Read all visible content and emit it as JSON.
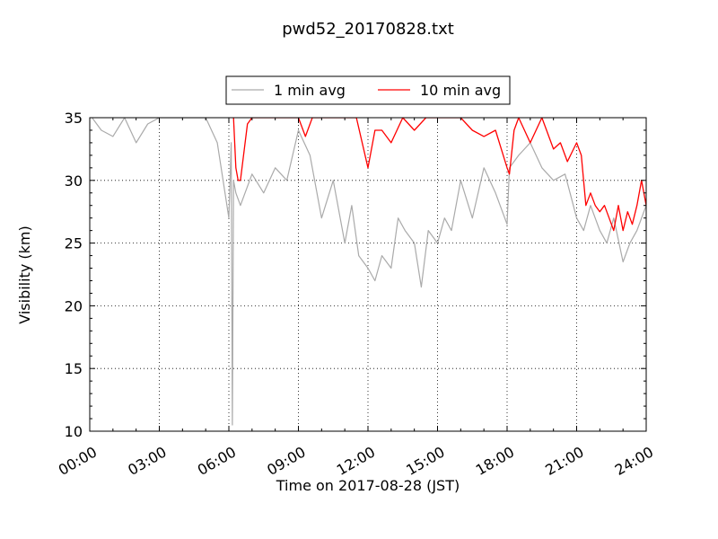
{
  "chart_data": {
    "type": "line",
    "title": "pwd52_20170828.txt",
    "xlabel": "Time on 2017-08-28 (JST)",
    "ylabel": "Visibility (km)",
    "xlim_hours": [
      0,
      24
    ],
    "ylim": [
      10,
      35
    ],
    "xticks": [
      "00:00",
      "03:00",
      "06:00",
      "09:00",
      "12:00",
      "15:00",
      "18:00",
      "21:00",
      "24:00"
    ],
    "yticks": [
      10,
      15,
      20,
      25,
      30,
      35
    ],
    "grid": true,
    "legend": {
      "placement": "top-center-outside"
    },
    "series": [
      {
        "name": "1 min avg",
        "color": "#aaaaaa",
        "x_hours": [
          0.1,
          0.5,
          1.0,
          1.5,
          2.0,
          2.5,
          3.0,
          4.0,
          5.0,
          5.5,
          6.0,
          6.1,
          6.15,
          6.2,
          6.3,
          6.5,
          7.0,
          7.5,
          8.0,
          8.5,
          9.0,
          9.5,
          10.0,
          10.5,
          11.0,
          11.3,
          11.6,
          12.0,
          12.3,
          12.6,
          13.0,
          13.3,
          13.6,
          14.0,
          14.3,
          14.6,
          15.0,
          15.3,
          15.6,
          16.0,
          16.5,
          17.0,
          17.5,
          18.0,
          18.1,
          18.5,
          19.0,
          19.5,
          20.0,
          20.5,
          21.0,
          21.3,
          21.6,
          22.0,
          22.3,
          22.6,
          23.0,
          23.3,
          23.6,
          24.0
        ],
        "y": [
          35,
          34,
          33.5,
          35,
          33,
          34.5,
          35,
          35,
          35,
          33,
          27,
          33,
          10.5,
          30,
          29,
          28,
          30.5,
          29,
          31,
          30,
          34,
          32,
          27,
          30,
          25,
          28,
          24,
          23,
          22,
          24,
          23,
          27,
          26,
          25,
          21.5,
          26,
          25,
          27,
          26,
          30,
          27,
          31,
          29,
          26.5,
          31,
          32,
          33,
          31,
          30,
          30.5,
          27,
          26,
          28,
          26,
          25,
          27,
          23.5,
          25,
          26,
          28
        ]
      },
      {
        "name": "10 min avg",
        "color": "#ff0000",
        "x_hours": [
          6.2,
          6.3,
          6.4,
          6.5,
          6.8,
          7.0,
          7.5,
          8.0,
          8.5,
          9.0,
          9.3,
          9.6,
          10.0,
          10.5,
          11.0,
          11.5,
          12.0,
          12.3,
          12.6,
          13.0,
          13.5,
          14.0,
          14.5,
          15.0,
          15.5,
          16.0,
          16.5,
          17.0,
          17.5,
          18.0,
          18.1,
          18.3,
          18.5,
          19.0,
          19.5,
          20.0,
          20.3,
          20.6,
          21.0,
          21.2,
          21.4,
          21.6,
          21.8,
          22.0,
          22.2,
          22.4,
          22.6,
          22.8,
          23.0,
          23.2,
          23.4,
          23.6,
          23.8,
          24.0
        ],
        "y": [
          35,
          31,
          30,
          30,
          34.5,
          35,
          35,
          35,
          35,
          35,
          33.5,
          35,
          35,
          35,
          35,
          35,
          31,
          34,
          34,
          33,
          35,
          34,
          35,
          35,
          35,
          35,
          34,
          33.5,
          34,
          31,
          30.5,
          34,
          35,
          33,
          35,
          32.5,
          33,
          31.5,
          33,
          32,
          28,
          29,
          28,
          27.5,
          28,
          27,
          26,
          28,
          26,
          27.5,
          26.5,
          28,
          30,
          28
        ]
      }
    ]
  }
}
